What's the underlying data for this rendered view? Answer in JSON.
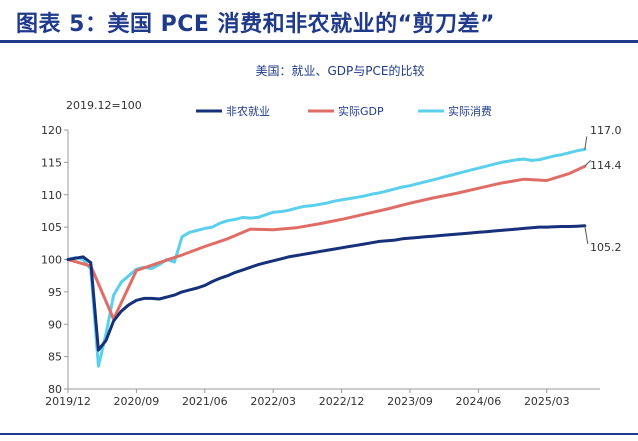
{
  "figure_title": "图表 5：美国 PCE 消费和非农就业的“剪刀差”",
  "chart_data": {
    "type": "line",
    "title": "美国：就业、GDP与PCE的比较",
    "unit_label": "2019.12=100",
    "xlabel": "",
    "ylabel": "",
    "ylim": [
      80,
      120
    ],
    "yticks": [
      80,
      85,
      90,
      95,
      100,
      105,
      110,
      115,
      120
    ],
    "xlim": [
      0,
      70
    ],
    "xticks": [
      {
        "label": "2019/12",
        "t": 0
      },
      {
        "label": "2020/09",
        "t": 9
      },
      {
        "label": "2021/06",
        "t": 18
      },
      {
        "label": "2022/03",
        "t": 27
      },
      {
        "label": "2022/12",
        "t": 36
      },
      {
        "label": "2023/09",
        "t": 45
      },
      {
        "label": "2024/06",
        "t": 54
      },
      {
        "label": "2025/03",
        "t": 63
      }
    ],
    "legend_position": "top",
    "series": [
      {
        "name": "非农就业",
        "color": "#16307a",
        "end_label": "105.2",
        "points": [
          [
            0,
            100
          ],
          [
            1,
            100.2
          ],
          [
            2,
            100.4
          ],
          [
            3,
            99.5
          ],
          [
            4,
            86
          ],
          [
            5,
            87.5
          ],
          [
            6,
            90.5
          ],
          [
            7,
            92
          ],
          [
            8,
            93
          ],
          [
            9,
            93.7
          ],
          [
            10,
            94
          ],
          [
            11,
            94
          ],
          [
            12,
            93.9
          ],
          [
            13,
            94.2
          ],
          [
            14,
            94.5
          ],
          [
            15,
            95
          ],
          [
            16,
            95.3
          ],
          [
            17,
            95.6
          ],
          [
            18,
            96
          ],
          [
            19,
            96.6
          ],
          [
            20,
            97.1
          ],
          [
            21,
            97.5
          ],
          [
            22,
            98
          ],
          [
            23,
            98.4
          ],
          [
            24,
            98.8
          ],
          [
            25,
            99.2
          ],
          [
            26,
            99.5
          ],
          [
            27,
            99.8
          ],
          [
            28,
            100.1
          ],
          [
            29,
            100.4
          ],
          [
            30,
            100.6
          ],
          [
            31,
            100.8
          ],
          [
            32,
            101
          ],
          [
            33,
            101.2
          ],
          [
            34,
            101.4
          ],
          [
            35,
            101.6
          ],
          [
            36,
            101.8
          ],
          [
            37,
            102
          ],
          [
            38,
            102.2
          ],
          [
            39,
            102.4
          ],
          [
            40,
            102.6
          ],
          [
            41,
            102.8
          ],
          [
            42,
            102.9
          ],
          [
            43,
            103
          ],
          [
            44,
            103.2
          ],
          [
            45,
            103.3
          ],
          [
            46,
            103.4
          ],
          [
            47,
            103.5
          ],
          [
            48,
            103.6
          ],
          [
            49,
            103.7
          ],
          [
            50,
            103.8
          ],
          [
            51,
            103.9
          ],
          [
            52,
            104
          ],
          [
            53,
            104.1
          ],
          [
            54,
            104.2
          ],
          [
            55,
            104.3
          ],
          [
            56,
            104.4
          ],
          [
            57,
            104.5
          ],
          [
            58,
            104.6
          ],
          [
            59,
            104.7
          ],
          [
            60,
            104.8
          ],
          [
            61,
            104.9
          ],
          [
            62,
            105
          ],
          [
            63,
            105
          ],
          [
            64,
            105.05
          ],
          [
            65,
            105.1
          ],
          [
            66,
            105.1
          ],
          [
            67,
            105.15
          ],
          [
            68,
            105.2
          ]
        ]
      },
      {
        "name": "实际GDP",
        "color": "#e06c66",
        "end_label": "114.4",
        "points": [
          [
            0,
            100
          ],
          [
            3,
            99
          ],
          [
            6,
            90.8
          ],
          [
            9,
            98.3
          ],
          [
            12,
            99.5
          ],
          [
            15,
            100.7
          ],
          [
            18,
            102
          ],
          [
            21,
            103.2
          ],
          [
            24,
            104.7
          ],
          [
            27,
            104.6
          ],
          [
            30,
            104.9
          ],
          [
            33,
            105.5
          ],
          [
            36,
            106.2
          ],
          [
            39,
            107
          ],
          [
            42,
            107.8
          ],
          [
            45,
            108.7
          ],
          [
            48,
            109.5
          ],
          [
            51,
            110.2
          ],
          [
            54,
            111
          ],
          [
            57,
            111.8
          ],
          [
            60,
            112.4
          ],
          [
            63,
            112.2
          ],
          [
            66,
            113.3
          ],
          [
            68,
            114.4
          ]
        ]
      },
      {
        "name": "实际消费",
        "color": "#5ad0ec",
        "end_label": "117.0",
        "points": [
          [
            0,
            100
          ],
          [
            1,
            100.3
          ],
          [
            2,
            100
          ],
          [
            3,
            98.5
          ],
          [
            4,
            83.5
          ],
          [
            5,
            88.5
          ],
          [
            6,
            94.5
          ],
          [
            7,
            96.5
          ],
          [
            8,
            97.5
          ],
          [
            9,
            98.5
          ],
          [
            10,
            98.8
          ],
          [
            11,
            98.6
          ],
          [
            12,
            99.2
          ],
          [
            13,
            100
          ],
          [
            14,
            99.6
          ],
          [
            15,
            103.5
          ],
          [
            16,
            104.2
          ],
          [
            17,
            104.5
          ],
          [
            18,
            104.8
          ],
          [
            19,
            105
          ],
          [
            20,
            105.6
          ],
          [
            21,
            106
          ],
          [
            22,
            106.2
          ],
          [
            23,
            106.5
          ],
          [
            24,
            106.4
          ],
          [
            25,
            106.5
          ],
          [
            26,
            106.9
          ],
          [
            27,
            107.3
          ],
          [
            28,
            107.4
          ],
          [
            29,
            107.6
          ],
          [
            30,
            107.9
          ],
          [
            31,
            108.2
          ],
          [
            32,
            108.3
          ],
          [
            33,
            108.5
          ],
          [
            34,
            108.7
          ],
          [
            35,
            109
          ],
          [
            36,
            109.2
          ],
          [
            37,
            109.4
          ],
          [
            38,
            109.6
          ],
          [
            39,
            109.8
          ],
          [
            40,
            110.1
          ],
          [
            41,
            110.3
          ],
          [
            42,
            110.6
          ],
          [
            43,
            110.9
          ],
          [
            44,
            111.2
          ],
          [
            45,
            111.4
          ],
          [
            46,
            111.7
          ],
          [
            47,
            112
          ],
          [
            48,
            112.3
          ],
          [
            49,
            112.6
          ],
          [
            50,
            112.9
          ],
          [
            51,
            113.2
          ],
          [
            52,
            113.5
          ],
          [
            53,
            113.8
          ],
          [
            54,
            114.1
          ],
          [
            55,
            114.4
          ],
          [
            56,
            114.7
          ],
          [
            57,
            115
          ],
          [
            58,
            115.2
          ],
          [
            59,
            115.4
          ],
          [
            60,
            115.5
          ],
          [
            61,
            115.3
          ],
          [
            62,
            115.4
          ],
          [
            63,
            115.7
          ],
          [
            64,
            116
          ],
          [
            65,
            116.2
          ],
          [
            66,
            116.5
          ],
          [
            67,
            116.8
          ],
          [
            68,
            117
          ]
        ]
      }
    ]
  }
}
